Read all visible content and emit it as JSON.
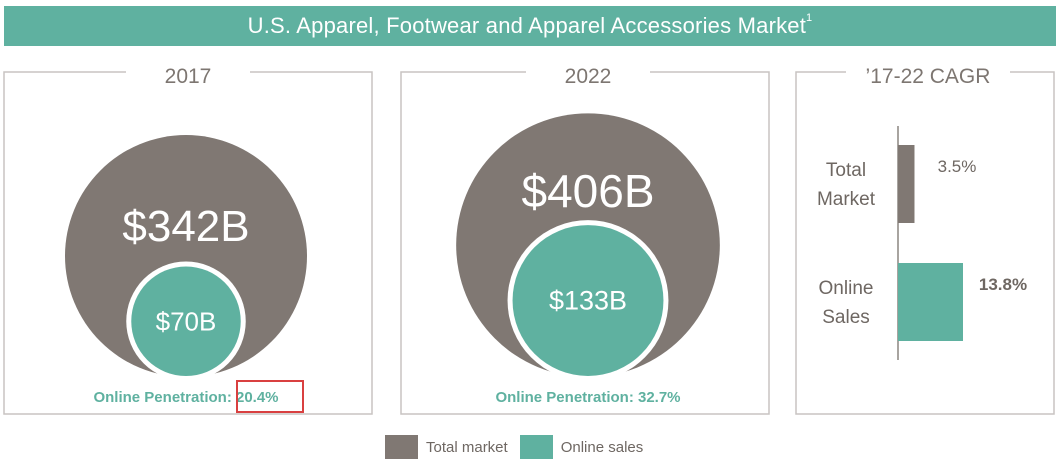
{
  "banner": {
    "title": "U.S. Apparel, Footwear and Apparel Accessories Market",
    "footnote": "1"
  },
  "colors": {
    "total": "#807873",
    "online": "#5fb1a0",
    "highlight": "#d94040",
    "frame": "#c8c4c2"
  },
  "chart_data": [
    {
      "type": "bubble",
      "title": "2017",
      "series": [
        {
          "name": "Total market",
          "value": 342,
          "label": "$342B"
        },
        {
          "name": "Online sales",
          "value": 70,
          "label": "$70B"
        }
      ],
      "penetration_label": "Online Penetration:",
      "penetration_value": "20.4%",
      "penetration_highlighted": true
    },
    {
      "type": "bubble",
      "title": "2022",
      "series": [
        {
          "name": "Total market",
          "value": 406,
          "label": "$406B"
        },
        {
          "name": "Online sales",
          "value": 133,
          "label": "$133B"
        }
      ],
      "penetration_label": "Online Penetration:",
      "penetration_value": "32.7%",
      "penetration_highlighted": false
    },
    {
      "type": "bar",
      "orientation": "horizontal",
      "title": "’17-22 CAGR",
      "categories": [
        "Total\nMarket",
        "Online\nSales"
      ],
      "values": [
        3.5,
        13.8
      ],
      "value_labels": [
        "3.5%",
        "13.8%"
      ],
      "unit": "%"
    }
  ],
  "legend": {
    "items": [
      {
        "label": "Total market"
      },
      {
        "label": "Online sales"
      }
    ]
  }
}
